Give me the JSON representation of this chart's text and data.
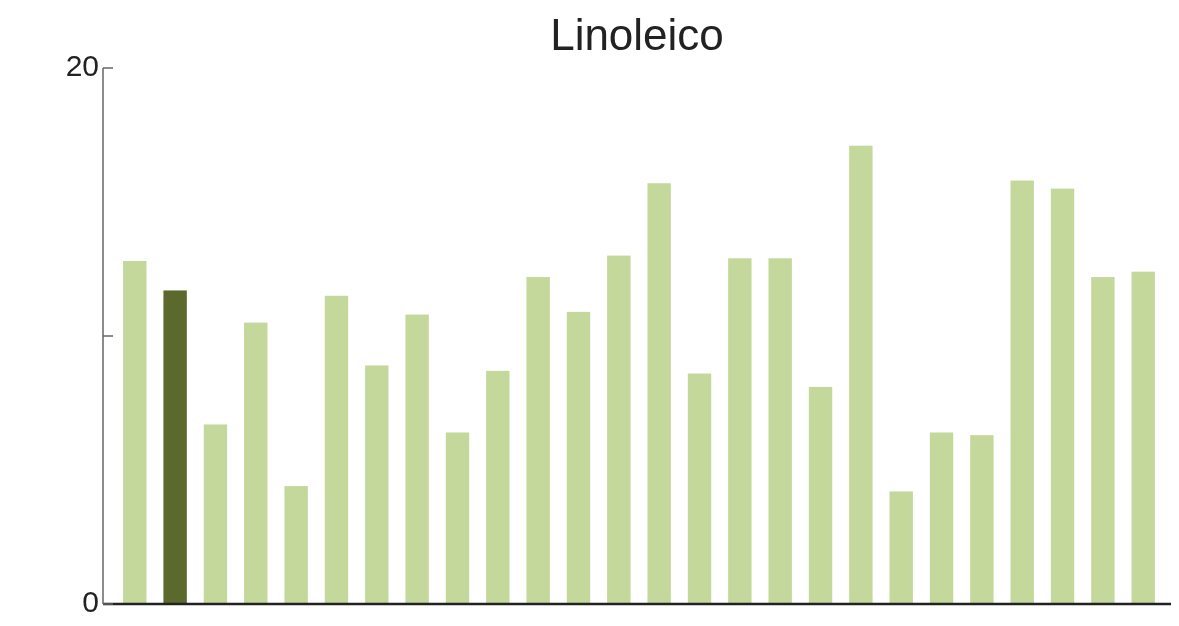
{
  "chart_data": {
    "type": "bar",
    "title": "Linoleico",
    "categories": [
      null,
      null,
      null,
      null,
      null,
      null,
      null,
      null,
      null,
      null,
      null,
      null,
      null,
      null,
      null,
      null,
      null,
      null,
      null,
      null,
      null,
      null,
      null,
      null,
      null,
      null
    ],
    "values": [
      12.8,
      11.7,
      6.7,
      10.5,
      4.4,
      11.5,
      8.9,
      10.8,
      6.4,
      8.7,
      12.2,
      10.9,
      13.0,
      15.7,
      8.6,
      12.9,
      12.9,
      8.1,
      17.1,
      4.2,
      6.4,
      6.3,
      15.8,
      15.5,
      12.2,
      12.4
    ],
    "colors": [
      "#c4d89c",
      "#5b6a2c",
      "#c4d89c",
      "#c4d89c",
      "#c4d89c",
      "#c4d89c",
      "#c4d89c",
      "#c4d89c",
      "#c4d89c",
      "#c4d89c",
      "#c4d89c",
      "#c4d89c",
      "#c4d89c",
      "#c4d89c",
      "#c4d89c",
      "#c4d89c",
      "#c4d89c",
      "#c4d89c",
      "#c4d89c",
      "#c4d89c",
      "#c4d89c",
      "#c4d89c",
      "#c4d89c",
      "#c4d89c",
      "#c4d89c",
      "#c4d89c"
    ],
    "ylim": [
      0,
      20
    ],
    "yticks": [
      0,
      {
        "value": 10,
        "label": null
      },
      20
    ],
    "tick_labels": "y"
  }
}
